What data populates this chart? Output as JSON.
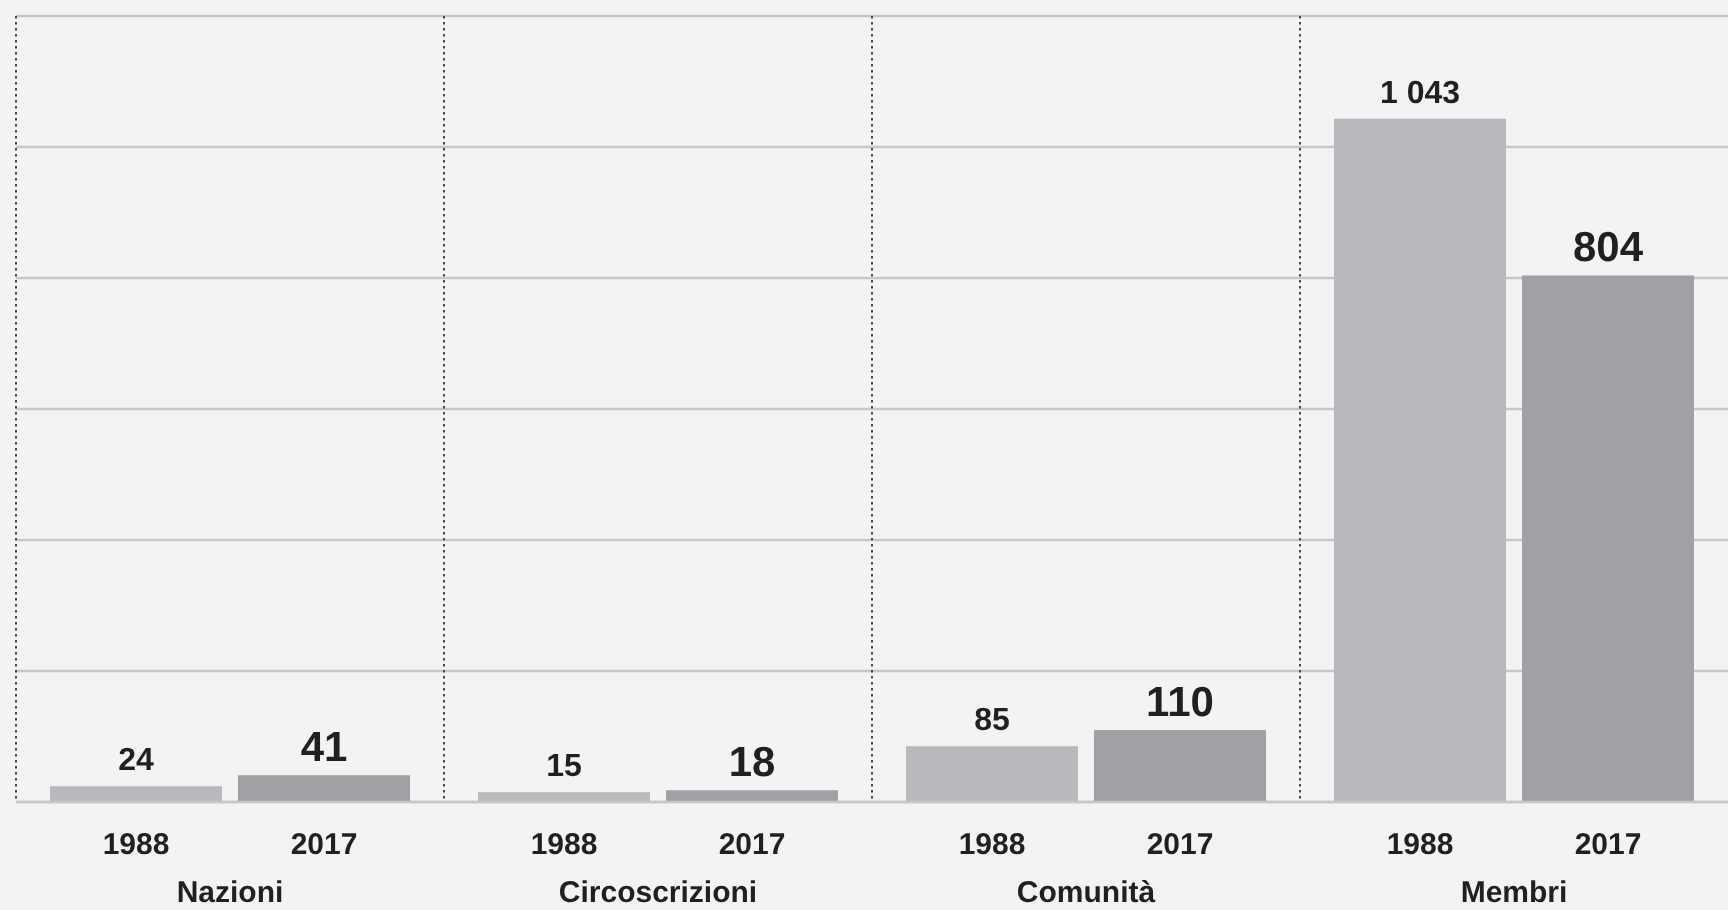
{
  "chart_data": {
    "type": "bar",
    "categories": [
      "Nazioni",
      "Circoscrizioni",
      "Comunità",
      "Membri"
    ],
    "series": [
      {
        "name": "1988",
        "color": "#b8b9bc",
        "values": [
          24,
          15,
          85,
          1043
        ],
        "value_labels": [
          "24",
          "15",
          "85",
          "1 043"
        ]
      },
      {
        "name": "2017",
        "color": "#a0a1a4",
        "values": [
          41,
          18,
          110,
          804
        ],
        "value_labels": [
          "41",
          "18",
          "110",
          "804"
        ]
      }
    ],
    "ylim": [
      0,
      1200
    ],
    "yticks": [
      0,
      200,
      400,
      600,
      800,
      1000,
      1200
    ],
    "grid": true,
    "tick_labels": "x"
  }
}
